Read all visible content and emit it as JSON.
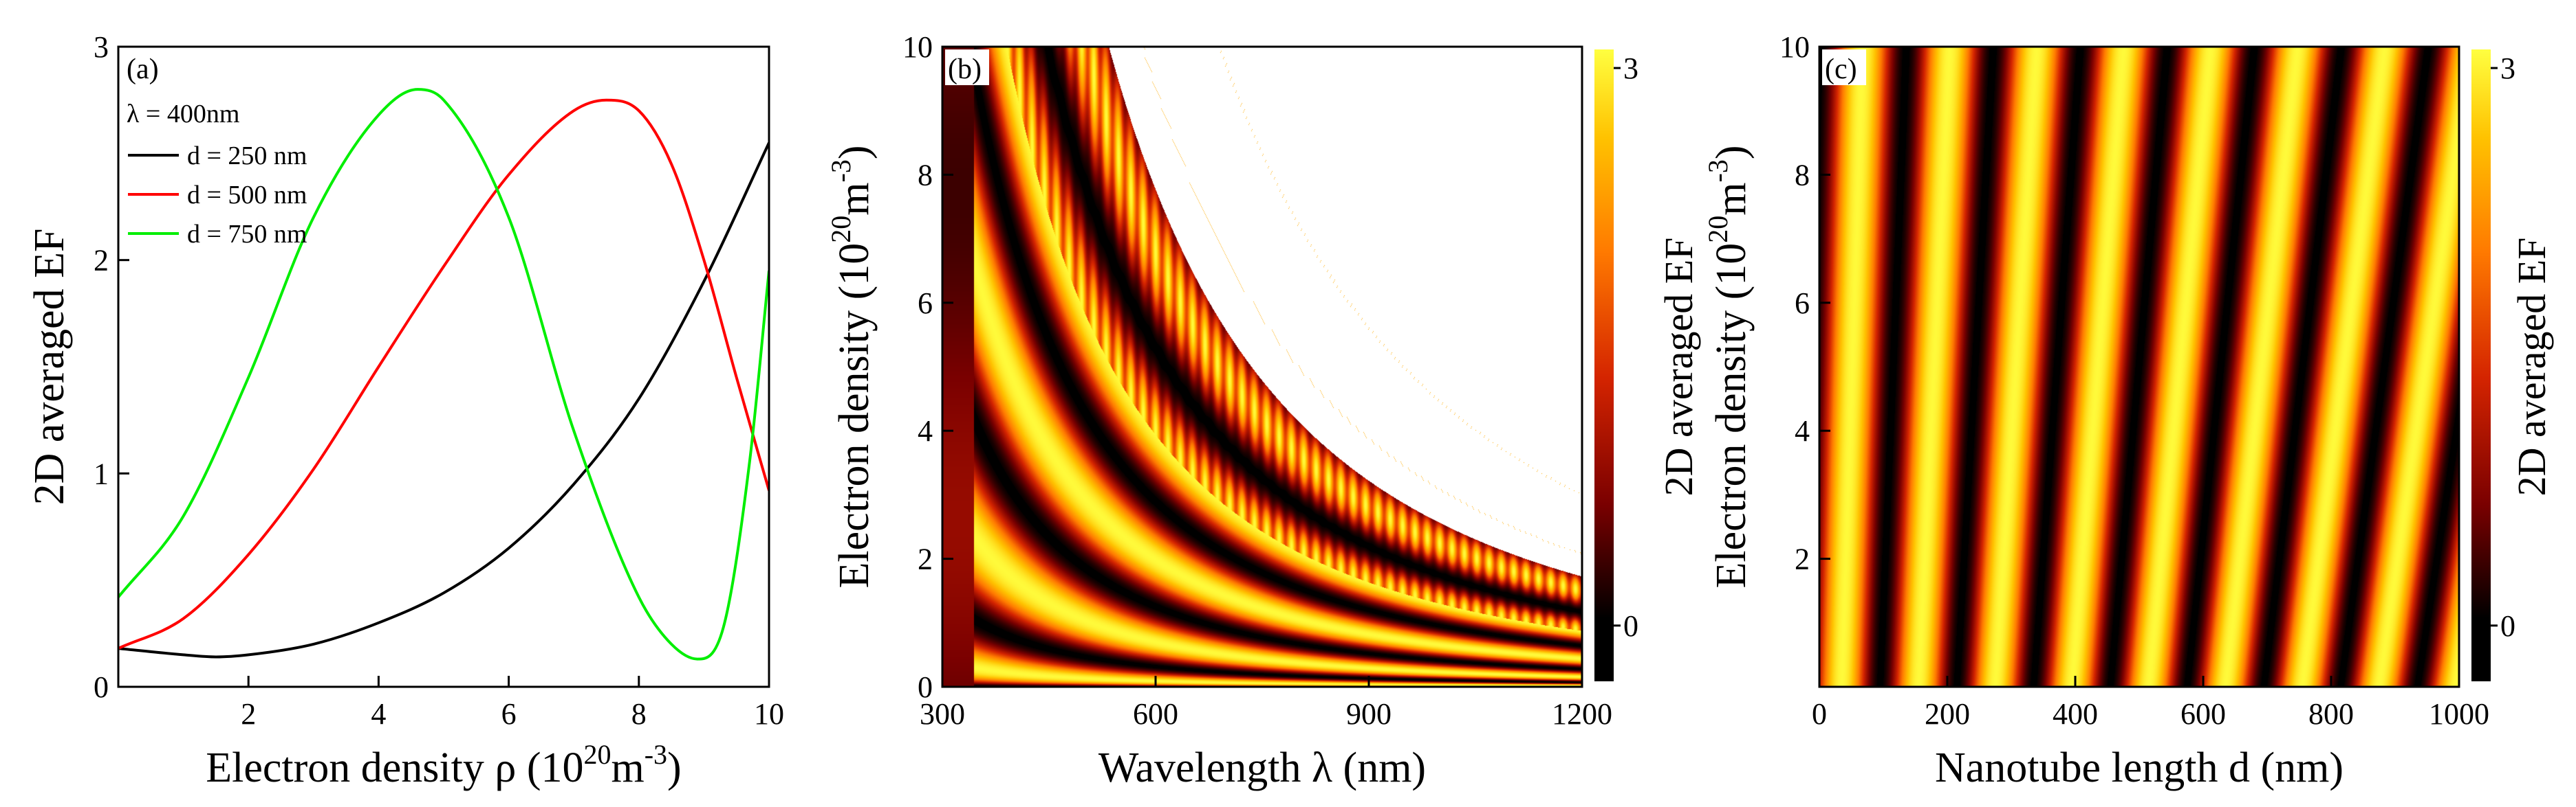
{
  "chart_data": [
    {
      "panel": "(a)",
      "type": "line",
      "annotation": "λ = 400nm",
      "xlabel_main": "Electron density ρ (10",
      "xlabel_sup": "20",
      "xlabel_mid": "m",
      "xlabel_sup2": "-3",
      "xlabel_end": ")",
      "ylabel": "2D averaged EF",
      "xlim": [
        0,
        10
      ],
      "ylim": [
        0,
        3
      ],
      "xticks": [
        2,
        4,
        6,
        8,
        10
      ],
      "xtick_labels": [
        "2",
        "4",
        "6",
        "8",
        "10"
      ],
      "yticks": [
        0,
        1,
        2,
        3
      ],
      "ytick_labels": [
        "0",
        "1",
        "2",
        "3"
      ],
      "legend_position": "top-left",
      "series": [
        {
          "name": "d = 250 nm",
          "color": "#000000",
          "x": [
            0,
            1,
            1.5,
            2,
            3,
            4,
            5,
            6,
            7,
            8,
            9,
            10
          ],
          "y": [
            0.18,
            0.15,
            0.14,
            0.15,
            0.2,
            0.3,
            0.44,
            0.65,
            0.95,
            1.35,
            1.9,
            2.55
          ]
        },
        {
          "name": "d = 500 nm",
          "color": "#ff0000",
          "x": [
            0,
            1,
            2,
            3,
            4,
            5,
            6,
            7,
            7.5,
            8,
            8.5,
            9,
            9.5,
            10
          ],
          "y": [
            0.18,
            0.32,
            0.62,
            1.02,
            1.5,
            1.97,
            2.4,
            2.7,
            2.75,
            2.7,
            2.45,
            2.0,
            1.45,
            0.92
          ]
        },
        {
          "name": "d = 750 nm",
          "color": "#00ee00",
          "x": [
            0,
            1,
            2,
            3,
            4,
            4.6,
            5,
            6,
            7,
            8,
            8.5,
            8.9,
            9.3,
            9.7,
            10
          ],
          "y": [
            0.42,
            0.8,
            1.45,
            2.2,
            2.68,
            2.8,
            2.75,
            2.2,
            1.2,
            0.42,
            0.2,
            0.13,
            0.28,
            1.05,
            1.95
          ]
        }
      ]
    },
    {
      "panel": "(b)",
      "type": "heatmap",
      "xlabel": "Wavelength λ (nm)",
      "ylabel_main": "Electron density (10",
      "ylabel_sup": "20",
      "ylabel_mid": "m",
      "ylabel_sup2": "-3",
      "ylabel_end": ")",
      "colorbar_label": "2D averaged EF",
      "xlim": [
        300,
        1200
      ],
      "ylim": [
        0,
        10
      ],
      "xticks": [
        300,
        600,
        900,
        1200
      ],
      "xtick_labels": [
        "300",
        "600",
        "900",
        "1200"
      ],
      "yticks": [
        0,
        2,
        4,
        6,
        8,
        10
      ],
      "ytick_labels": [
        "0",
        "2",
        "4",
        "6",
        "8",
        "10"
      ],
      "colorbar_range": [
        -0.3,
        3.1
      ],
      "colorbar_ticks": [
        0,
        3
      ],
      "colorbar_tick_labels": [
        "0",
        "3"
      ],
      "colormap": [
        "#000000",
        "#7a0000",
        "#d42400",
        "#ff7a00",
        "#ffc200",
        "#ffff40"
      ]
    },
    {
      "panel": "(c)",
      "type": "heatmap",
      "xlabel": "Nanotube length d (nm)",
      "ylabel_main": "Electron density (10",
      "ylabel_sup": "20",
      "ylabel_mid": "m",
      "ylabel_sup2": "-3",
      "ylabel_end": ")",
      "colorbar_label": "2D averaged EF",
      "xlim": [
        0,
        1000
      ],
      "ylim": [
        0,
        10
      ],
      "xticks": [
        0,
        200,
        400,
        600,
        800,
        1000
      ],
      "xtick_labels": [
        "0",
        "200",
        "400",
        "600",
        "800",
        "1000"
      ],
      "yticks": [
        2,
        4,
        6,
        8,
        10
      ],
      "ytick_labels": [
        "2",
        "4",
        "6",
        "8",
        "10"
      ],
      "colorbar_range": [
        -0.3,
        3.1
      ],
      "colorbar_ticks": [
        0,
        3
      ],
      "colorbar_tick_labels": [
        "0",
        "3"
      ],
      "colormap": [
        "#000000",
        "#7a0000",
        "#d42400",
        "#ff7a00",
        "#ffc200",
        "#ffff40"
      ]
    }
  ]
}
